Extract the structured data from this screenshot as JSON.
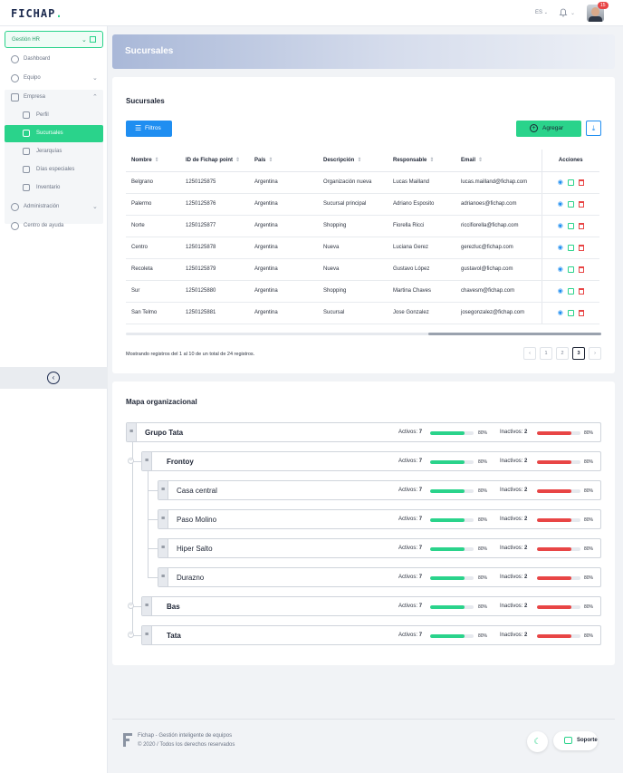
{
  "app": {
    "logo": "FICHAP",
    "language": "ES",
    "notification_count": "15"
  },
  "sidebar": {
    "module": "Gestión HR",
    "items": [
      {
        "label": "Dashboard",
        "icon": "dashboard-icon"
      },
      {
        "label": "Equipo",
        "icon": "team-icon"
      },
      {
        "label": "Empresa",
        "icon": "building-icon"
      },
      {
        "label": "Administración",
        "icon": "admin-icon"
      },
      {
        "label": "Centro de ayuda",
        "icon": "help-icon"
      }
    ],
    "empresa_sub": [
      {
        "label": "Perfil"
      },
      {
        "label": "Sucursales",
        "active": true
      },
      {
        "label": "Jerarquías"
      },
      {
        "label": "Días especiales"
      },
      {
        "label": "Inventario"
      }
    ]
  },
  "page": {
    "title": "Sucursales"
  },
  "branches": {
    "title": "Sucursales",
    "filter_label": "Filtros",
    "add_label": "Agregar",
    "columns": [
      "Nombre",
      "ID de Fichap point",
      "País",
      "Descripción",
      "Responsable",
      "Email",
      "Acciones"
    ],
    "rows": [
      [
        "Belgrano",
        "1250125875",
        "Argentina",
        "Organización nueva",
        "Lucas Mailland",
        "lucas.mailland@fichap.com"
      ],
      [
        "Palermo",
        "1250125876",
        "Argentina",
        "Sucursal principal",
        "Adriano Esposito",
        "adrianoes@fichap.com"
      ],
      [
        "Norte",
        "1250125877",
        "Argentina",
        "Shopping",
        "Fiorella Ricci",
        "riccifiorella@fichap.com"
      ],
      [
        "Centro",
        "1250125878",
        "Argentina",
        "Nueva",
        "Luciana Gerez",
        "gerezluc@fichap.com"
      ],
      [
        "Recoleta",
        "1250125879",
        "Argentina",
        "Nueva",
        "Gustavo López",
        "gustavol@fichap.com"
      ],
      [
        "Sur",
        "1250125880",
        "Argentina",
        "Shopping",
        "Martina Chaves",
        "chavesm@fichap.com"
      ],
      [
        "San Telmo",
        "1250125881",
        "Argentina",
        "Sucursal",
        "Jose Gonzalez",
        "josegonzalez@fichap.com"
      ]
    ],
    "pagination_text": "Mostrando registros del 1 al 10 de un total de 24 registros.",
    "pages": [
      "1",
      "2",
      "3"
    ],
    "current_page": "3"
  },
  "org_map": {
    "title": "Mapa organizacional",
    "active_label": "Activos:",
    "inactive_label": "Inactivos:",
    "nodes": [
      {
        "name": "Grupo Tata",
        "level": 0,
        "activos": "7",
        "inactivos": "2",
        "active_pct": "80%",
        "inactive_pct": "80%"
      },
      {
        "name": "Frontoy",
        "level": 1,
        "activos": "7",
        "inactivos": "2",
        "active_pct": "80%",
        "inactive_pct": "80%"
      },
      {
        "name": "Casa central",
        "level": 2,
        "activos": "7",
        "inactivos": "2",
        "active_pct": "80%",
        "inactive_pct": "80%"
      },
      {
        "name": "Paso Molino",
        "level": 2,
        "activos": "7",
        "inactivos": "2",
        "active_pct": "80%",
        "inactive_pct": "80%"
      },
      {
        "name": "Hiper Salto",
        "level": 2,
        "activos": "7",
        "inactivos": "2",
        "active_pct": "80%",
        "inactive_pct": "80%"
      },
      {
        "name": "Durazno",
        "level": 2,
        "activos": "7",
        "inactivos": "2",
        "active_pct": "80%",
        "inactive_pct": "80%"
      },
      {
        "name": "Bas",
        "level": 1,
        "activos": "7",
        "inactivos": "2",
        "active_pct": "80%",
        "inactive_pct": "80%"
      },
      {
        "name": "Tata",
        "level": 1,
        "activos": "7",
        "inactivos": "2",
        "active_pct": "80%",
        "inactive_pct": "80%"
      }
    ]
  },
  "footer": {
    "line1": "Fichap - Gestión inteligente de equipos",
    "line2": "© 2020 / Todos los derechos reservados",
    "support_label": "Soporte"
  },
  "colors": {
    "accent": "#2ad38b",
    "primary": "#1f8ef1",
    "danger": "#e84545",
    "navy": "#1d2b4f"
  }
}
